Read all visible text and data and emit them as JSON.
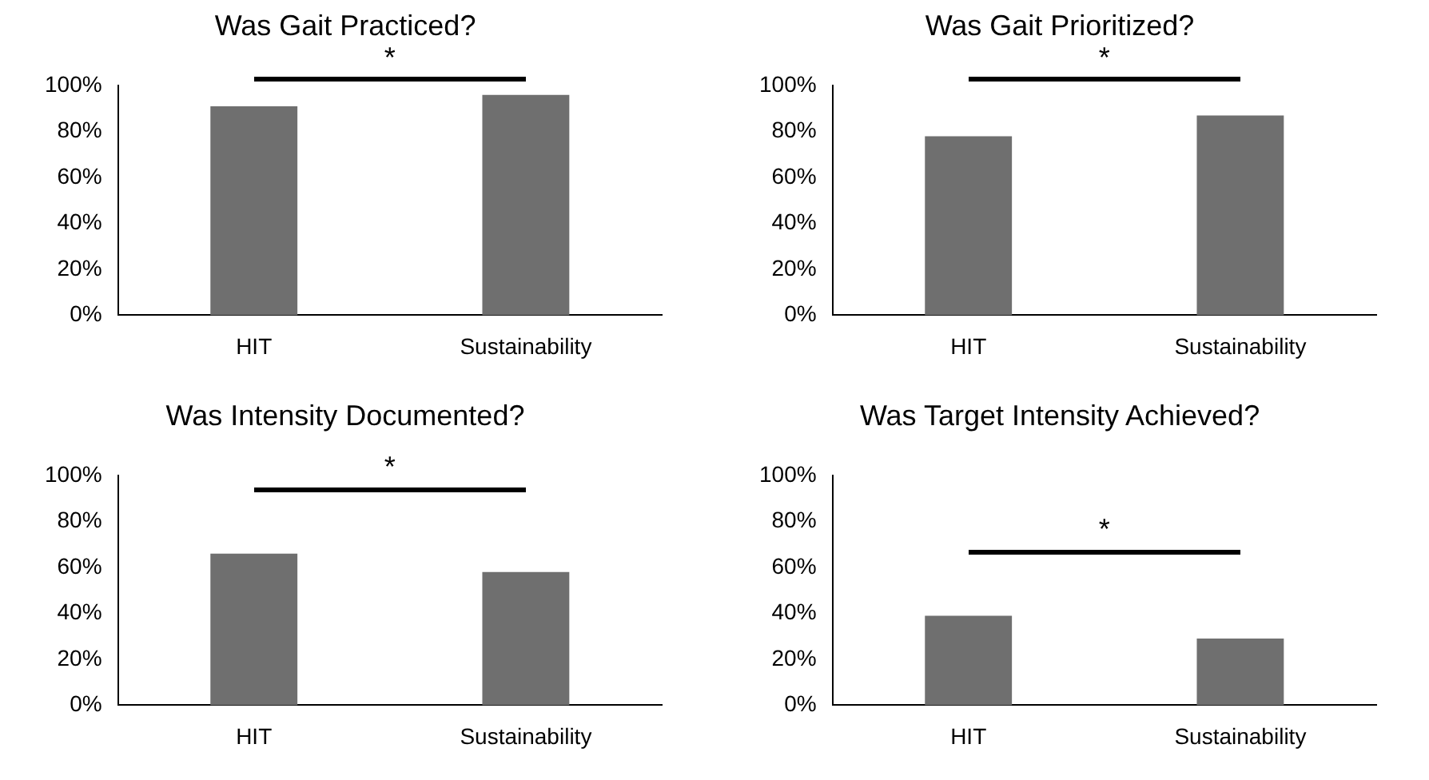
{
  "chart_data": [
    {
      "type": "bar",
      "title": "Was Gait Practiced?",
      "categories": [
        "HIT",
        "Sustainability"
      ],
      "values": [
        91,
        96
      ],
      "color": "#6f6f6f",
      "ylim": [
        0,
        100
      ],
      "yticks": [
        {
          "value": 0,
          "label": "0%"
        },
        {
          "value": 20,
          "label": "20%"
        },
        {
          "value": 40,
          "label": "40%"
        },
        {
          "value": 60,
          "label": "60%"
        },
        {
          "value": 80,
          "label": "80%"
        },
        {
          "value": 100,
          "label": "100%"
        }
      ],
      "annotations": [
        "*"
      ]
    },
    {
      "type": "bar",
      "title": "Was Gait Prioritized?",
      "categories": [
        "HIT",
        "Sustainability"
      ],
      "values": [
        78,
        87
      ],
      "color": "#6f6f6f",
      "ylim": [
        0,
        100
      ],
      "yticks": [
        {
          "value": 0,
          "label": "0%"
        },
        {
          "value": 20,
          "label": "20%"
        },
        {
          "value": 40,
          "label": "40%"
        },
        {
          "value": 60,
          "label": "60%"
        },
        {
          "value": 80,
          "label": "80%"
        },
        {
          "value": 100,
          "label": "100%"
        }
      ],
      "annotations": [
        "*"
      ]
    },
    {
      "type": "bar",
      "title": "Was Intensity Documented?",
      "categories": [
        "HIT",
        "Sustainability"
      ],
      "values": [
        66,
        58
      ],
      "color": "#6f6f6f",
      "ylim": [
        0,
        100
      ],
      "yticks": [
        {
          "value": 0,
          "label": "0%"
        },
        {
          "value": 20,
          "label": "20%"
        },
        {
          "value": 40,
          "label": "40%"
        },
        {
          "value": 60,
          "label": "60%"
        },
        {
          "value": 80,
          "label": "80%"
        },
        {
          "value": 100,
          "label": "100%"
        }
      ],
      "annotations": [
        "*"
      ]
    },
    {
      "type": "bar",
      "title": "Was Target Intensity Achieved?",
      "categories": [
        "HIT",
        "Sustainability"
      ],
      "values": [
        39,
        29
      ],
      "color": "#6f6f6f",
      "ylim": [
        0,
        100
      ],
      "yticks": [
        {
          "value": 0,
          "label": "0%"
        },
        {
          "value": 20,
          "label": "20%"
        },
        {
          "value": 40,
          "label": "40%"
        },
        {
          "value": 60,
          "label": "60%"
        },
        {
          "value": 80,
          "label": "80%"
        },
        {
          "value": 100,
          "label": "100%"
        }
      ],
      "annotations": [
        "*"
      ]
    }
  ]
}
